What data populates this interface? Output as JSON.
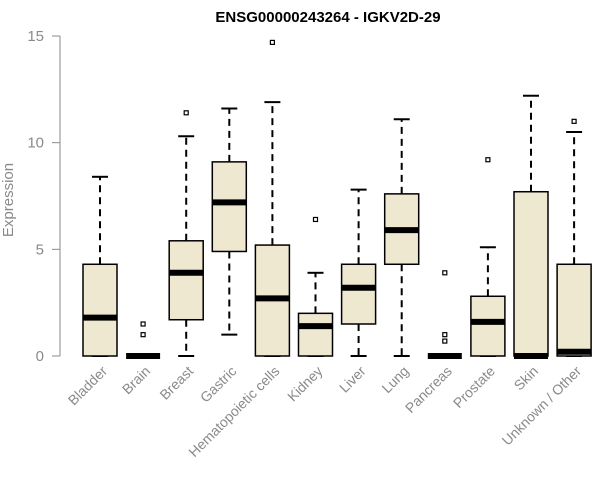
{
  "chart_data": {
    "type": "box",
    "title": "ENSG00000243264 - IGKV2D-29",
    "ylabel": "Expression",
    "xlabel": "",
    "ylim": [
      0,
      15
    ],
    "yticks": [
      0,
      5,
      10,
      15
    ],
    "grid": false,
    "box_fill": "#efe8d0",
    "box_stroke": "#000000",
    "median_color": "#000000",
    "categories": [
      "Bladder",
      "Brain",
      "Breast",
      "Gastric",
      "Hematopoietic cells",
      "Kidney",
      "Liver",
      "Lung",
      "Pancreas",
      "Prostate",
      "Skin",
      "Unknown / Other"
    ],
    "boxes": [
      {
        "category": "Bladder",
        "whisker_low": 0,
        "q1": 0,
        "median": 1.8,
        "q3": 4.3,
        "whisker_high": 8.4,
        "outliers": []
      },
      {
        "category": "Brain",
        "whisker_low": 0,
        "q1": 0,
        "median": 0,
        "q3": 0,
        "whisker_high": 0,
        "outliers": [
          1.0,
          1.5
        ]
      },
      {
        "category": "Breast",
        "whisker_low": 0,
        "q1": 1.7,
        "median": 3.9,
        "q3": 5.4,
        "whisker_high": 10.3,
        "outliers": [
          11.4
        ]
      },
      {
        "category": "Gastric",
        "whisker_low": 1.0,
        "q1": 4.9,
        "median": 7.2,
        "q3": 9.1,
        "whisker_high": 11.6,
        "outliers": []
      },
      {
        "category": "Hematopoietic cells",
        "whisker_low": 0,
        "q1": 0,
        "median": 2.7,
        "q3": 5.2,
        "whisker_high": 11.9,
        "outliers": [
          14.7
        ]
      },
      {
        "category": "Kidney",
        "whisker_low": 0,
        "q1": 0,
        "median": 1.4,
        "q3": 2.0,
        "whisker_high": 3.9,
        "outliers": [
          6.4
        ]
      },
      {
        "category": "Liver",
        "whisker_low": 0,
        "q1": 1.5,
        "median": 3.2,
        "q3": 4.3,
        "whisker_high": 7.8,
        "outliers": []
      },
      {
        "category": "Lung",
        "whisker_low": 0,
        "q1": 4.3,
        "median": 5.9,
        "q3": 7.6,
        "whisker_high": 11.1,
        "outliers": []
      },
      {
        "category": "Pancreas",
        "whisker_low": 0,
        "q1": 0,
        "median": 0,
        "q3": 0,
        "whisker_high": 0,
        "outliers": [
          0.7,
          1.0,
          3.9
        ]
      },
      {
        "category": "Prostate",
        "whisker_low": 0,
        "q1": 0,
        "median": 1.6,
        "q3": 2.8,
        "whisker_high": 5.1,
        "outliers": [
          9.2
        ]
      },
      {
        "category": "Skin",
        "whisker_low": 0,
        "q1": 0,
        "median": 0,
        "q3": 7.7,
        "whisker_high": 12.2,
        "outliers": []
      },
      {
        "category": "Unknown / Other",
        "whisker_low": 0,
        "q1": 0,
        "median": 0.2,
        "q3": 4.3,
        "whisker_high": 10.5,
        "outliers": [
          11.0
        ]
      }
    ]
  }
}
